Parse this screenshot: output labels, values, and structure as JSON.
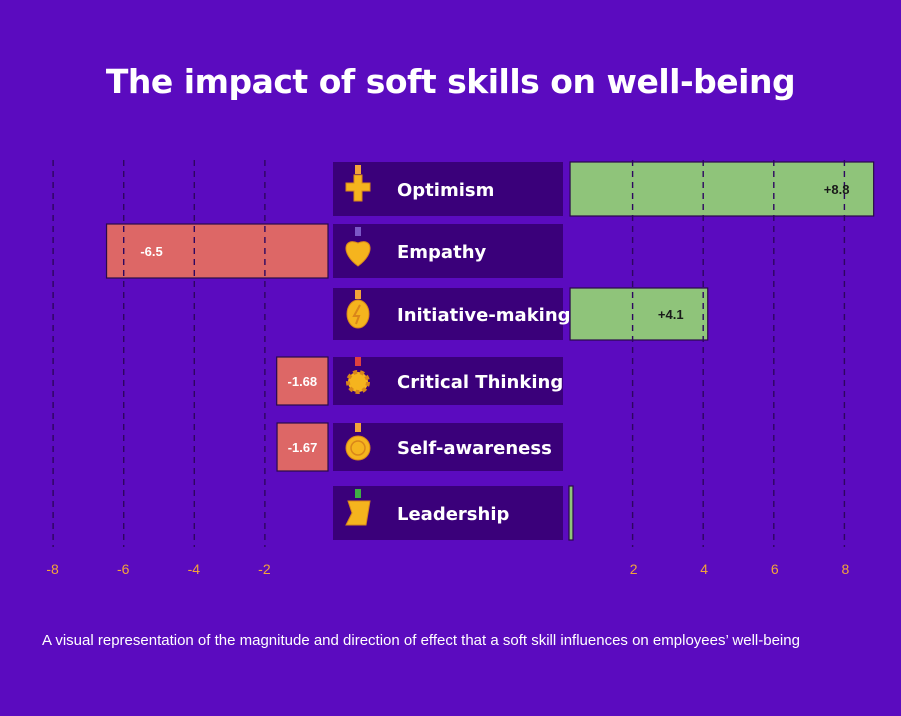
{
  "title": "The impact of soft skills on well-being",
  "caption": "A visual representation of the magnitude and direction of effect that a soft skill influences on employees’ well-being",
  "colors": {
    "background": "#5b0bbf",
    "label_box": "#3a007a",
    "positive": "#8fc47a",
    "negative": "#dd6766",
    "tick": "#f2a43a",
    "icon": "#f5b41e"
  },
  "chart_data": {
    "type": "bar",
    "orientation": "horizontal-diverging",
    "title": "The impact of soft skills on well-being",
    "categories": [
      "Optimism",
      "Empathy",
      "Initiative-making",
      "Critical Thinking",
      "Self-awareness",
      "Leadership"
    ],
    "values": [
      8.8,
      -6.5,
      4.1,
      -1.68,
      -1.67,
      0.1
    ],
    "value_labels": [
      "+8.8",
      "-6.5",
      "+4.1",
      "-1.68",
      "-1.67",
      ""
    ],
    "icons": [
      "cross-medal-icon",
      "heart-medal-icon",
      "bulb-medal-icon",
      "gear-medal-icon",
      "round-medal-icon",
      "flag-medal-icon"
    ],
    "negative_ticks": [
      "-8",
      "-6",
      "-4",
      "-2"
    ],
    "positive_ticks": [
      "2",
      "4",
      "6",
      "8"
    ],
    "xlim": [
      -8,
      8
    ],
    "grid": true
  }
}
